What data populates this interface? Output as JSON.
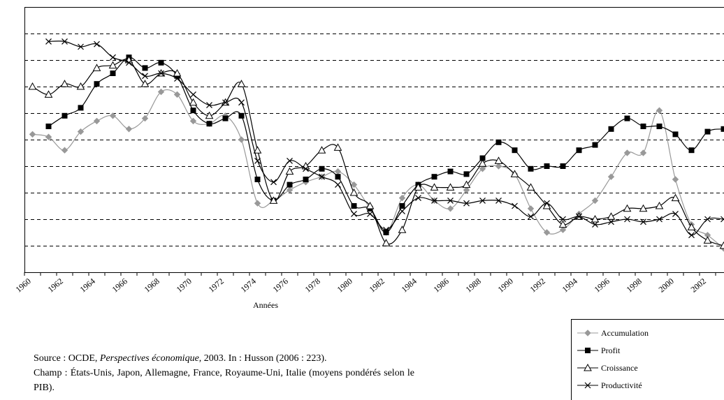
{
  "chart_data": {
    "type": "line",
    "x_label": "Années",
    "categories": [
      "1960",
      null,
      "1962",
      null,
      "1964",
      null,
      "1966",
      null,
      "1968",
      null,
      "1970",
      null,
      "1972",
      null,
      "1974",
      null,
      "1976",
      null,
      "1978",
      null,
      "1980",
      null,
      "1982",
      null,
      "1984",
      null,
      "1986",
      null,
      "1988",
      null,
      "1990",
      null,
      "1992",
      null,
      "1994",
      null,
      "1996",
      null,
      "1998",
      null,
      "2000",
      null,
      "2002",
      null
    ],
    "ylim": [
      0,
      10
    ],
    "yticks": [
      1,
      2,
      3,
      4,
      5,
      6,
      7,
      8,
      9
    ],
    "grid": true,
    "series": [
      {
        "name": "Accumulation",
        "color": "#999999",
        "marker": "diamond",
        "values": [
          5.2,
          5.1,
          4.6,
          5.3,
          5.7,
          5.9,
          5.4,
          5.8,
          6.8,
          6.7,
          5.7,
          5.6,
          5.9,
          5.0,
          2.6,
          2.7,
          3.1,
          3.4,
          3.6,
          3.8,
          3.3,
          2.4,
          1.5,
          2.8,
          3.3,
          2.7,
          2.4,
          3.1,
          3.9,
          4.0,
          3.7,
          2.4,
          1.5,
          1.6,
          2.2,
          2.7,
          3.6,
          4.5,
          4.5,
          6.1,
          3.5,
          1.8,
          1.4,
          0.9
        ]
      },
      {
        "name": "Profit",
        "color": "#000000",
        "marker": "square",
        "values": [
          null,
          5.5,
          5.9,
          6.2,
          7.1,
          7.5,
          8.1,
          7.7,
          7.9,
          7.4,
          6.1,
          5.6,
          5.8,
          5.9,
          3.5,
          2.7,
          3.3,
          3.5,
          3.9,
          3.6,
          2.5,
          2.4,
          1.5,
          2.5,
          3.3,
          3.6,
          3.8,
          3.7,
          4.3,
          4.9,
          4.6,
          3.9,
          4.0,
          4.0,
          4.6,
          4.8,
          5.4,
          5.8,
          5.5,
          5.5,
          5.2,
          4.6,
          5.3,
          5.4
        ]
      },
      {
        "name": "Croissance",
        "color": "#000000",
        "marker": "triangle",
        "values": [
          7.0,
          6.7,
          7.1,
          7.0,
          7.7,
          7.8,
          8.0,
          7.1,
          7.5,
          7.5,
          6.4,
          5.9,
          6.4,
          7.1,
          4.6,
          2.7,
          3.8,
          4.0,
          4.6,
          4.7,
          3.0,
          2.5,
          1.1,
          1.6,
          3.2,
          3.2,
          3.2,
          3.3,
          4.1,
          4.2,
          3.7,
          3.2,
          2.5,
          1.8,
          2.1,
          2.0,
          2.1,
          2.4,
          2.4,
          2.5,
          2.8,
          1.7,
          1.2,
          1.0
        ]
      },
      {
        "name": "Productivité",
        "color": "#000000",
        "marker": "cross",
        "values": [
          null,
          8.7,
          8.7,
          8.5,
          8.6,
          8.1,
          7.9,
          7.4,
          7.5,
          7.3,
          6.7,
          6.3,
          6.4,
          6.4,
          4.2,
          3.4,
          4.2,
          3.9,
          3.6,
          3.3,
          2.2,
          2.2,
          1.6,
          2.3,
          2.8,
          2.7,
          2.7,
          2.6,
          2.7,
          2.7,
          2.5,
          2.1,
          2.6,
          2.0,
          2.1,
          1.8,
          1.9,
          2.0,
          1.9,
          2.0,
          2.2,
          1.4,
          2.0,
          2.0
        ]
      }
    ]
  },
  "note": {
    "source_prefix": "Source : OCDE, ",
    "source_italic": "Perspectives économique",
    "source_suffix": ", 2003. In : Husson (2006 : 223).",
    "champ": "Champ : États-Unis, Japon, Allemagne, France, Royaume-Uni, Italie (moyens pondérés selon le PIB)."
  }
}
